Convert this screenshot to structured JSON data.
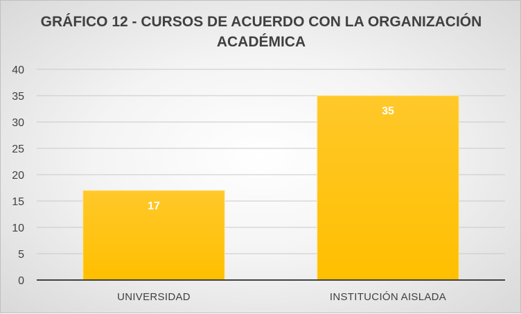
{
  "chart_data": {
    "type": "bar",
    "title_lines": [
      "GRÁFICO 12 - CURSOS DE ACUERDO CON LA ORGANIZACIÓN",
      "ACADÉMICA"
    ],
    "categories": [
      "UNIVERSIDAD",
      "INSTITUCIÓN AISLADA"
    ],
    "values": [
      17,
      35
    ],
    "data_labels": [
      "17",
      "35"
    ],
    "ylim": [
      0,
      40
    ],
    "y_ticks": [
      "0",
      "5",
      "10",
      "15",
      "20",
      "25",
      "30",
      "35",
      "40"
    ],
    "grid": true,
    "bar_color": "#FFC000",
    "xlabel": "",
    "ylabel": ""
  }
}
